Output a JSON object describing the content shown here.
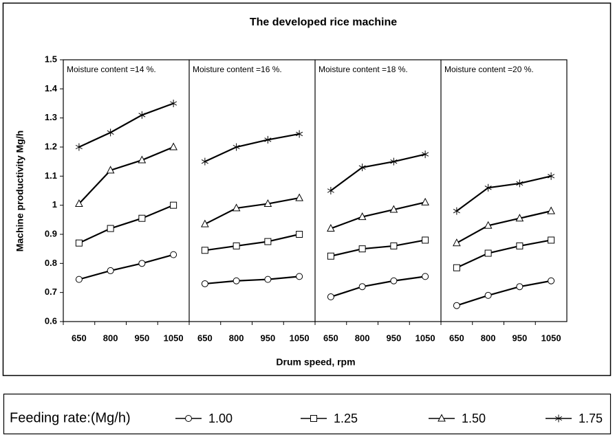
{
  "chart_data": {
    "type": "line",
    "title": "The developed rice machine",
    "xlabel": "Drum speed, rpm",
    "ylabel": "Machine productivity Mg/h",
    "ylim": [
      0.6,
      1.5
    ],
    "yticks": [
      0.6,
      0.7,
      0.8,
      0.9,
      1,
      1.1,
      1.2,
      1.3,
      1.4,
      1.5
    ],
    "color": "#000000",
    "legend_title": "Feeding rate:(Mg/h)",
    "panels": [
      {
        "label": "Moisture content =14 %.",
        "categories": [
          "650",
          "800",
          "950",
          "1050"
        ]
      },
      {
        "label": "Moisture content =16 %.",
        "categories": [
          "650",
          "800",
          "950",
          "1050"
        ]
      },
      {
        "label": "Moisture content =18 %.",
        "categories": [
          "650",
          "800",
          "950",
          "1050"
        ]
      },
      {
        "label": "Moisture content =20 %.",
        "categories": [
          "650",
          "800",
          "950",
          "1050"
        ]
      }
    ],
    "series": [
      {
        "name": "1.00",
        "marker": "circle",
        "values": [
          [
            0.745,
            0.775,
            0.8,
            0.83
          ],
          [
            0.73,
            0.74,
            0.745,
            0.755
          ],
          [
            0.685,
            0.72,
            0.74,
            0.755
          ],
          [
            0.655,
            0.69,
            0.72,
            0.74
          ]
        ]
      },
      {
        "name": "1.25",
        "marker": "square",
        "values": [
          [
            0.87,
            0.92,
            0.955,
            1.0
          ],
          [
            0.845,
            0.86,
            0.875,
            0.9
          ],
          [
            0.825,
            0.85,
            0.86,
            0.88
          ],
          [
            0.785,
            0.835,
            0.86,
            0.88
          ]
        ]
      },
      {
        "name": "1.50",
        "marker": "triangle",
        "values": [
          [
            1.005,
            1.12,
            1.155,
            1.2
          ],
          [
            0.935,
            0.99,
            1.005,
            1.025
          ],
          [
            0.92,
            0.96,
            0.985,
            1.01
          ],
          [
            0.87,
            0.93,
            0.955,
            0.98
          ]
        ]
      },
      {
        "name": "1.75",
        "marker": "star",
        "values": [
          [
            1.2,
            1.25,
            1.31,
            1.35
          ],
          [
            1.15,
            1.2,
            1.225,
            1.245
          ],
          [
            1.05,
            1.13,
            1.15,
            1.175
          ],
          [
            0.98,
            1.06,
            1.075,
            1.1
          ]
        ]
      }
    ]
  }
}
